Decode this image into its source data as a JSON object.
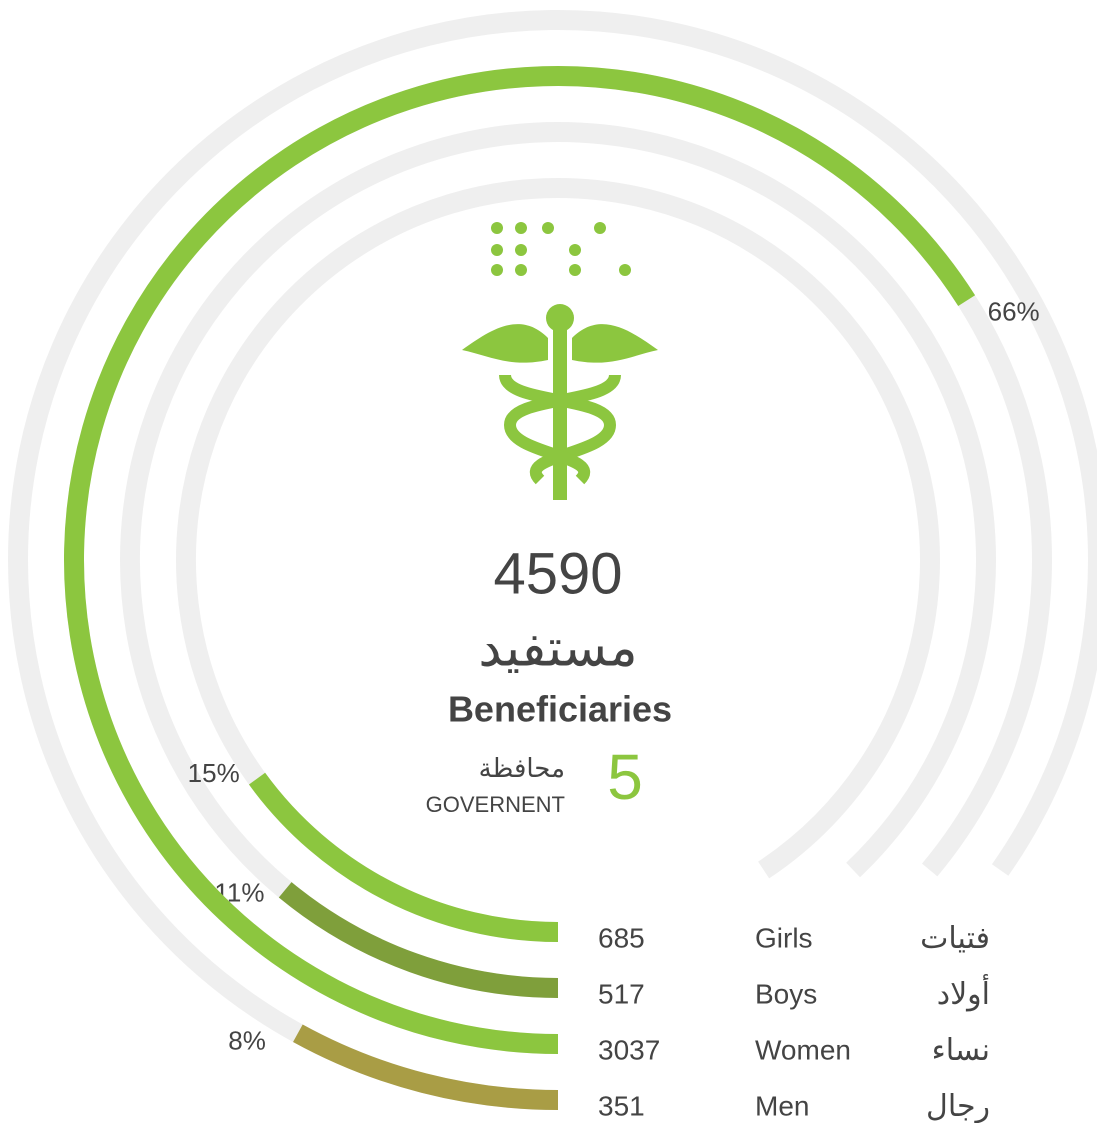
{
  "chart_data": {
    "type": "radial_bar",
    "total": 4590,
    "total_label_ar": "مستفيد",
    "total_label_en": "Beneficiaries",
    "governorates": 5,
    "governorates_label_ar": "محافظة",
    "governorates_label_en": "GOVERNENT",
    "categories": [
      "Girls",
      "Boys",
      "Women",
      "Men"
    ],
    "categories_ar": [
      "فتيات",
      "أولاد",
      "نساء",
      "رجال"
    ],
    "values": [
      685,
      517,
      3037,
      351
    ],
    "percentages": [
      15,
      11,
      66,
      8
    ],
    "percentage_labels": [
      "15%",
      "11%",
      "66%",
      "8%"
    ],
    "colors": [
      "#8cc63f",
      "#7f9f3b",
      "#8cc63f",
      "#a99d45"
    ],
    "track_color": "#efefef",
    "accent_color": "#8cc63f"
  }
}
